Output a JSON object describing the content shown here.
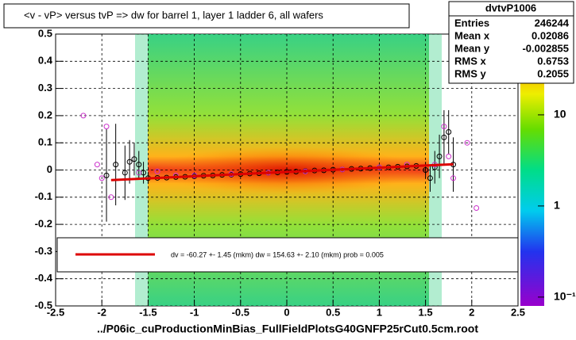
{
  "chart_data": {
    "type": "profile",
    "title": "<v - vP>       versus  tvP =>  dw for barrel 1, layer 1 ladder 6, all wafers",
    "x_label": "../P06ic_cuProductionMinBias_FullFieldPlotsG40GNFP25rCut0.5cm.root",
    "xlim": [
      -2.5,
      2.5
    ],
    "ylim": [
      -0.5,
      0.5
    ],
    "xticks": [
      -2.5,
      -2,
      -1.5,
      -1,
      -0.5,
      0,
      0.5,
      1,
      1.5,
      2,
      2.5
    ],
    "yticks": [
      -0.5,
      -0.4,
      -0.3,
      -0.2,
      -0.1,
      0,
      0.1,
      0.2,
      0.3,
      0.4,
      0.5
    ],
    "grid": true,
    "series": [
      {
        "color": "#000000",
        "x": [
          -1.95,
          -1.85,
          -1.75,
          -1.7,
          -1.65,
          -1.6,
          -1.55,
          -1.5,
          -1.4,
          -1.3,
          -1.2,
          -1.1,
          -1.0,
          -0.9,
          -0.8,
          -0.7,
          -0.6,
          -0.5,
          -0.4,
          -0.3,
          -0.2,
          -0.1,
          0,
          0.1,
          0.2,
          0.3,
          0.4,
          0.5,
          0.6,
          0.7,
          0.8,
          0.9,
          1.0,
          1.1,
          1.2,
          1.3,
          1.4,
          1.5,
          1.55,
          1.6,
          1.65,
          1.7,
          1.75,
          1.8
        ],
        "values": [
          -0.02,
          0.02,
          -0.01,
          0.03,
          0.04,
          0.02,
          -0.01,
          -0.03,
          -0.029,
          -0.028,
          -0.026,
          -0.025,
          -0.023,
          -0.021,
          -0.02,
          -0.018,
          -0.017,
          -0.015,
          -0.013,
          -0.012,
          -0.01,
          -0.009,
          -0.007,
          -0.006,
          -0.004,
          -0.002,
          -0.001,
          0.001,
          0.002,
          0.004,
          0.005,
          0.007,
          0.009,
          0.01,
          0.012,
          0.013,
          0.015,
          0,
          -0.03,
          0.01,
          0.05,
          0.12,
          0.14,
          0.02
        ],
        "errors": [
          0.17,
          0.15,
          0.1,
          0.08,
          0.06,
          0.05,
          0.04,
          0.02,
          0.005,
          0.005,
          0.005,
          0.005,
          0.005,
          0.005,
          0.005,
          0.005,
          0.005,
          0.005,
          0.005,
          0.005,
          0.005,
          0.005,
          0.005,
          0.005,
          0.005,
          0.005,
          0.005,
          0.005,
          0.005,
          0.005,
          0.005,
          0.005,
          0.005,
          0.005,
          0.005,
          0.005,
          0.005,
          0.03,
          0.05,
          0.06,
          0.08,
          0.1,
          0.08,
          0.1
        ]
      },
      {
        "color": "#cc33cc",
        "x": [
          -2.2,
          -1.95,
          -1.9,
          -2.05,
          -2.0,
          -1.6,
          -1.4,
          -1.2,
          -1.0,
          -0.6,
          -0.2,
          0.2,
          0.6,
          1.0,
          1.3,
          1.6,
          1.7,
          1.75,
          1.8,
          1.95,
          2.05
        ],
        "values": [
          0.2,
          0.16,
          -0.1,
          0.02,
          -0.03,
          -0.01,
          -0.005,
          -0.02,
          -0.02,
          -0.015,
          -0.01,
          -0.005,
          0.002,
          0.01,
          0.02,
          0.02,
          0.16,
          0.05,
          -0.03,
          0.1,
          -0.14
        ]
      }
    ],
    "fit": {
      "color": "#dd0000",
      "x": [
        -1.9,
        1.8
      ],
      "values": [
        -0.037,
        0.021
      ],
      "label": "dv =  -60.27 +-  1.45 (mkm) dw =  154.63 +-  2.10 (mkm) prob = 0.005"
    },
    "colorbar": {
      "log": true,
      "zlim": [
        0.08,
        77
      ],
      "ticks": [
        {
          "value": 10,
          "label": "10"
        },
        {
          "value": 1,
          "label": "1"
        },
        {
          "value": 0.1,
          "label": "10⁻¹"
        }
      ]
    },
    "stats": {
      "title": "dvtvP1006",
      "rows": [
        [
          "Entries",
          246244
        ],
        [
          "Mean x",
          0.02086
        ],
        [
          "Mean y",
          -0.002855
        ],
        [
          "RMS x",
          0.6753
        ],
        [
          "RMS y",
          0.2055
        ]
      ]
    }
  }
}
